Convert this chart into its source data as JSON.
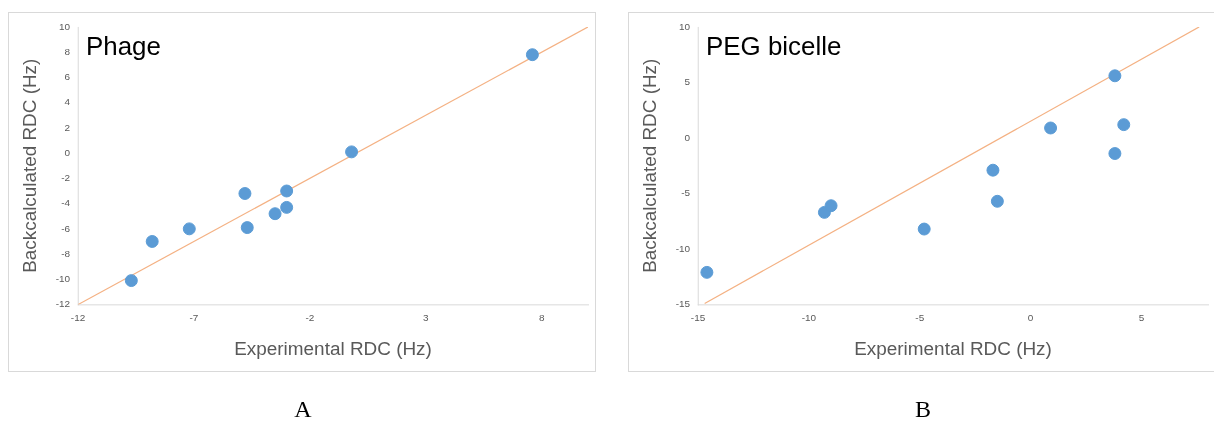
{
  "chart_data": [
    {
      "type": "scatter",
      "title": "Phage",
      "xlabel": "Experimental RDC (Hz)",
      "ylabel": "Backcalculated RDC (Hz)",
      "xlim": [
        -12,
        10
      ],
      "xticks": [
        -12,
        -7,
        -2,
        3,
        8
      ],
      "ylim": [
        -12,
        10
      ],
      "yticks": [
        -12,
        -10,
        -8,
        -6,
        -4,
        -2,
        0,
        2,
        4,
        6,
        8,
        10
      ],
      "grid": false,
      "legend": false,
      "marker": "circle",
      "annotations": [
        "A"
      ],
      "series": [
        {
          "color": "#5b9bd5",
          "x": [
            -9.7,
            -8.8,
            -7.2,
            -4.8,
            -4.7,
            -3.5,
            -3.0,
            -3.0,
            -0.2,
            7.6
          ],
          "values": [
            -10.1,
            -7.0,
            -6.0,
            -3.2,
            -5.9,
            -4.8,
            -4.3,
            -3.0,
            0.1,
            7.8
          ]
        },
        {
          "type": "line",
          "color": "#f4b183",
          "marker": "none",
          "x": [
            -12,
            10
          ],
          "values": [
            -12,
            10
          ]
        }
      ]
    },
    {
      "type": "scatter",
      "title": "PEG bicelle",
      "xlabel": "Experimental RDC (Hz)",
      "ylabel": "Backcalculated RDC (Hz)",
      "xlim": [
        -15,
        8
      ],
      "xticks": [
        -15,
        -10,
        -5,
        0,
        5
      ],
      "ylim": [
        -15,
        10
      ],
      "yticks": [
        -15,
        -10,
        -5,
        0,
        5,
        10
      ],
      "grid": false,
      "legend": false,
      "marker": "circle",
      "annotations": [
        "B"
      ],
      "series": [
        {
          "color": "#5b9bd5",
          "x": [
            -14.6,
            -9.3,
            -9.0,
            -4.8,
            -1.7,
            -1.5,
            0.9,
            3.8,
            3.8,
            4.2
          ],
          "values": [
            -12.1,
            -6.7,
            -6.1,
            -8.2,
            -2.9,
            -5.7,
            0.9,
            5.6,
            -1.4,
            1.2
          ]
        },
        {
          "type": "line",
          "color": "#f4b183",
          "marker": "none",
          "x": [
            -14.7,
            7.6
          ],
          "values": [
            -14.9,
            10
          ]
        }
      ]
    }
  ]
}
